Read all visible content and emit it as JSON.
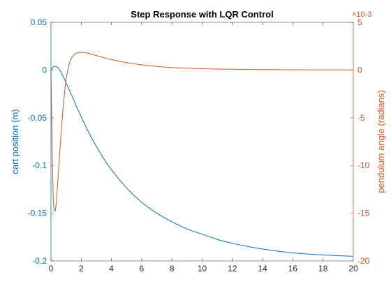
{
  "chart_data": {
    "type": "line",
    "title": "Step Response with LQR Control",
    "xlabel": "",
    "x_ticks": [
      0,
      2,
      4,
      6,
      8,
      10,
      12,
      14,
      16,
      18,
      20
    ],
    "xlim": [
      0,
      20
    ],
    "grid": false,
    "series": [
      {
        "name": "",
        "axis": "left",
        "color": "#0072BD",
        "ylabel": "cart position (m)",
        "ylim": [
          -0.2,
          0.05
        ],
        "y_ticks": [
          "0.05",
          "0",
          "-0.05",
          "-0.1",
          "-0.15",
          "-0.2"
        ],
        "x": [
          0,
          0.1,
          0.2,
          0.3,
          0.45,
          0.6,
          0.8,
          1.0,
          1.3,
          1.6,
          2.0,
          2.5,
          3.0,
          3.5,
          4.0,
          5.0,
          6.0,
          7.0,
          8.0,
          9.0,
          10.0,
          11.0,
          12.0,
          13.0,
          14.0,
          15.0,
          16.0,
          17.0,
          18.0,
          19.0,
          20.0
        ],
        "y": [
          0,
          0.0025,
          0.0037,
          0.0038,
          0.0025,
          -0.0005,
          -0.0065,
          -0.0135,
          -0.024,
          -0.035,
          -0.049,
          -0.0655,
          -0.08,
          -0.093,
          -0.1045,
          -0.1235,
          -0.1385,
          -0.15,
          -0.159,
          -0.1665,
          -0.172,
          -0.1775,
          -0.1815,
          -0.1848,
          -0.1875,
          -0.1898,
          -0.1915,
          -0.1928,
          -0.1938,
          -0.1945,
          -0.1952
        ]
      },
      {
        "name": "",
        "axis": "right",
        "color": "#D95319",
        "ylabel": "pendulum angle (radians)",
        "ylim": [
          -20,
          5
        ],
        "y_ticks": [
          "5",
          "0",
          "-5",
          "-10",
          "-15",
          "-20"
        ],
        "y_exponent": "×10-3",
        "x": [
          0,
          0.05,
          0.1,
          0.15,
          0.2,
          0.25,
          0.3,
          0.35,
          0.4,
          0.5,
          0.6,
          0.7,
          0.8,
          0.9,
          1.0,
          1.2,
          1.4,
          1.6,
          1.8,
          2.0,
          2.2,
          2.5,
          3.0,
          3.5,
          4.0,
          5.0,
          6.0,
          7.0,
          8.0,
          10.0,
          12.0,
          14.0,
          16.0,
          18.0,
          20.0
        ],
        "y": [
          0,
          -5.5,
          -10.2,
          -13.4,
          -14.6,
          -14.8,
          -14.6,
          -13.9,
          -12.9,
          -10.6,
          -8.2,
          -6.0,
          -4.0,
          -2.4,
          -1.0,
          0.6,
          1.35,
          1.7,
          1.82,
          1.85,
          1.84,
          1.75,
          1.52,
          1.3,
          1.1,
          0.78,
          0.55,
          0.38,
          0.27,
          0.14,
          0.08,
          0.05,
          0.03,
          0.02,
          0.01
        ]
      }
    ]
  }
}
